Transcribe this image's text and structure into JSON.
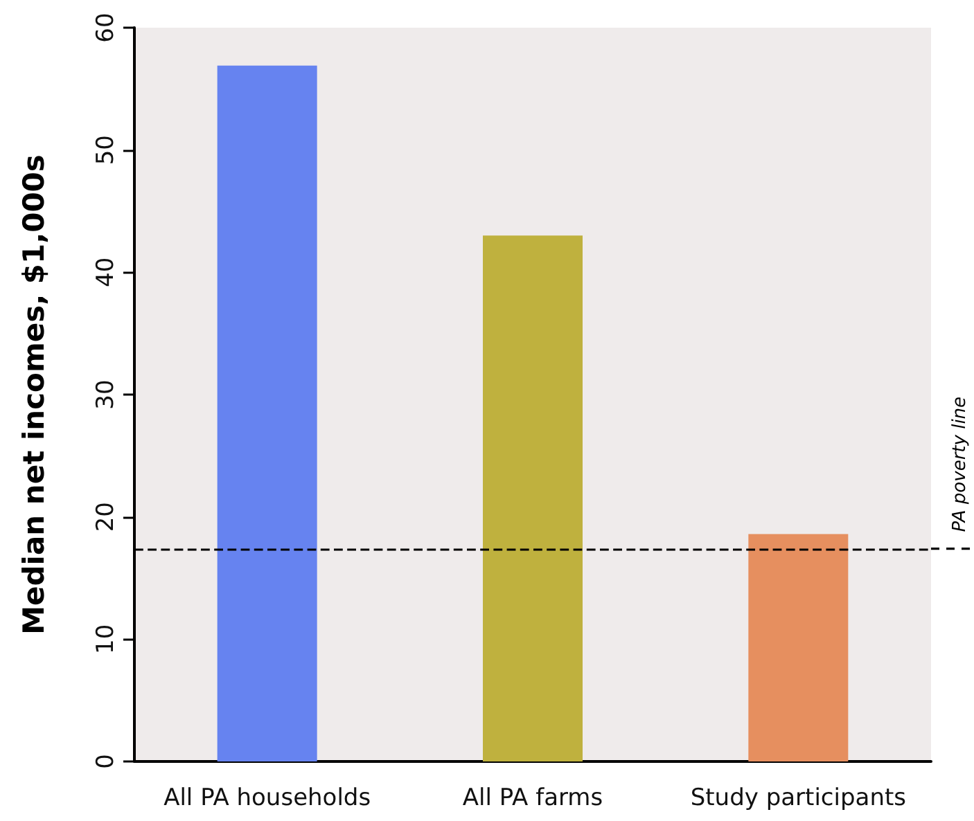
{
  "chart_data": {
    "type": "bar",
    "ylabel": "Median net incomes, $1,000s",
    "categories": [
      "All PA households",
      "All PA farms",
      "Study participants"
    ],
    "values": [
      56.9,
      43.0,
      18.6
    ],
    "colors": [
      "#6683f0",
      "#bfb13e",
      "#e68f5f"
    ],
    "ylim": [
      0,
      60
    ],
    "yticks": [
      0,
      10,
      20,
      30,
      40,
      50,
      60
    ],
    "grid": false,
    "ref_lines": [
      {
        "axis": "y",
        "value": 17.4,
        "label": "PA poverty line",
        "line_style": "dashed",
        "color": "#000000"
      }
    ]
  }
}
